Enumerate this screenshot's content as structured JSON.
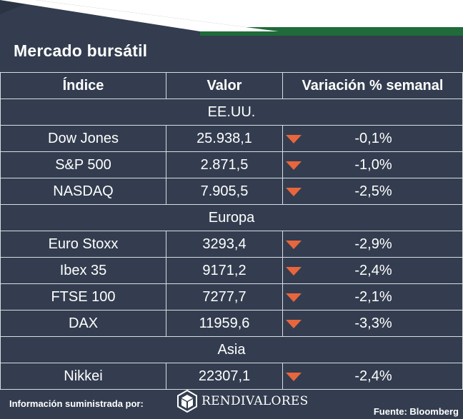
{
  "title": "Mercado bursátil",
  "columns": {
    "index": "Índice",
    "value": "Valor",
    "change": "Variación % semanal"
  },
  "regions": {
    "usa": "EE.UU.",
    "europe": "Europa",
    "asia": "Asia"
  },
  "rows": {
    "dow": {
      "name": "Dow Jones",
      "value": "25.938,1",
      "change": "-0,1%"
    },
    "sp500": {
      "name": "S&P 500",
      "value": "2.871,5",
      "change": "-1,0%"
    },
    "nasdaq": {
      "name": "NASDAQ",
      "value": "7.905,5",
      "change": "-2,5%"
    },
    "stoxx": {
      "name": "Euro Stoxx",
      "value": "3293,4",
      "change": "-2,9%"
    },
    "ibex": {
      "name": "Ibex 35",
      "value": "9171,2",
      "change": "-2,4%"
    },
    "ftse": {
      "name": "FTSE 100",
      "value": "7277,7",
      "change": "-2,1%"
    },
    "dax": {
      "name": "DAX",
      "value": "11959,6",
      "change": "-3,3%"
    },
    "nikkei": {
      "name": "Nikkei",
      "value": "22307,1",
      "change": "-2,4%"
    }
  },
  "footer": {
    "info": "Información suministrada por:",
    "brand": "RENDIVALORES",
    "source": "Fuente: Bloomberg"
  },
  "colors": {
    "background": "#333d4f",
    "accent_green": "#1f6b3a",
    "down_arrow": "#e8663d"
  },
  "icons": {
    "down": "down-triangle-icon",
    "logo": "hexagon-box-logo"
  }
}
